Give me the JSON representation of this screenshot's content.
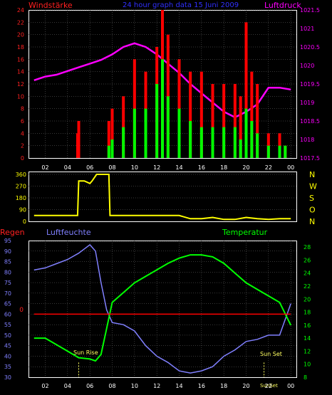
{
  "header": {
    "title": "24 hour graph data  15 Juni 2009",
    "left_label": "Windstärke",
    "right_label": "Luftdruck"
  },
  "colors": {
    "background": "#000000",
    "frame": "#ffffff",
    "wind_axis": "#ff2020",
    "pressure": "#ff00ff",
    "gust": "#ff0000",
    "wind": "#00ff00",
    "direction": "#ffff00",
    "humidity": "#8080ff",
    "temperature": "#00ff00",
    "rain": "#ff0000",
    "sun_marker": "#ffff60",
    "grid": "#707070",
    "title": "#3030ff",
    "x_ticks": "#ffffff"
  },
  "x_ticks": [
    "02",
    "04",
    "06",
    "08",
    "10",
    "12",
    "14",
    "16",
    "18",
    "20",
    "22",
    "00"
  ],
  "wind_panel": {
    "left_ticks": [
      "0",
      "2",
      "4",
      "6",
      "8",
      "10",
      "12",
      "14",
      "16",
      "18",
      "20",
      "22",
      "24"
    ],
    "right_ticks": [
      "1017.5",
      "1018",
      "1018.5",
      "1019",
      "1019.5",
      "1020",
      "1020.5",
      "1021",
      "1021.5"
    ]
  },
  "dir_panel": {
    "left_ticks": [
      "0",
      "90",
      "180",
      "270",
      "360"
    ],
    "right_labels": [
      "N",
      "W",
      "S",
      "O",
      "N"
    ]
  },
  "climate_panel": {
    "labels": {
      "rain": "Regen",
      "humidity": "Luftfeuchte",
      "temperature": "Temperatur",
      "sun_rise": "Sun Rise",
      "sun_set": "Sun Set",
      "sun_set_axis": "SunSet"
    },
    "left_ticks": [
      "30",
      "35",
      "40",
      "45",
      "50",
      "55",
      "60",
      "65",
      "70",
      "75",
      "80",
      "85",
      "90",
      "95"
    ],
    "right_ticks": [
      "8",
      "10",
      "12",
      "14",
      "16",
      "18",
      "20",
      "22",
      "24",
      "26",
      "28"
    ],
    "rain_value_label": "0"
  },
  "chart_data": [
    {
      "type": "line",
      "title": "24 hour graph data  15 Juni 2009",
      "xlabel": "",
      "ylabel": "Windstärke",
      "x_hours": [
        1,
        24
      ],
      "ylim": [
        0,
        24
      ],
      "y2label": "Luftdruck",
      "y2lim": [
        1017.5,
        1021.5
      ],
      "series": [
        {
          "name": "Luftdruck",
          "axis": "right",
          "x": [
            1,
            2,
            3,
            4,
            5,
            6,
            7,
            8,
            9,
            10,
            11,
            12,
            13,
            14,
            15,
            16,
            17,
            18,
            19,
            20,
            21,
            22,
            23,
            24
          ],
          "values": [
            1019.6,
            1019.7,
            1019.75,
            1019.85,
            1019.95,
            1020.05,
            1020.15,
            1020.3,
            1020.5,
            1020.6,
            1020.5,
            1020.3,
            1020.05,
            1019.8,
            1019.5,
            1019.25,
            1019.0,
            1018.75,
            1018.6,
            1018.75,
            1018.95,
            1019.4,
            1019.4,
            1019.35
          ]
        },
        {
          "name": "gust",
          "axis": "left",
          "x": [
            4.9,
            5.0,
            7.0,
            7.7,
            8.0,
            9.0,
            10,
            11,
            12,
            12.5,
            13,
            14,
            15,
            16,
            17,
            18,
            19,
            19.5,
            20,
            20.5,
            21,
            22,
            23,
            23.5
          ],
          "values": [
            4,
            6,
            0,
            6,
            8,
            10,
            16,
            14,
            18,
            24,
            20,
            16,
            14,
            14,
            12,
            12,
            12,
            10,
            22,
            14,
            12,
            4,
            4,
            2
          ]
        },
        {
          "name": "wind",
          "axis": "left",
          "x": [
            7.7,
            8.0,
            9.0,
            10,
            11,
            12,
            12.5,
            13,
            14,
            15,
            16,
            17,
            18,
            19,
            19.5,
            20,
            20.5,
            21,
            22,
            23,
            23.5
          ],
          "values": [
            2,
            3,
            5,
            8,
            8,
            12,
            16,
            10,
            8,
            6,
            5,
            5,
            5,
            5,
            3,
            8,
            6,
            4,
            2,
            2,
            2
          ]
        }
      ]
    },
    {
      "type": "line",
      "title": "",
      "xlabel": "",
      "ylabel": "",
      "x_hours": [
        1,
        24
      ],
      "ylim": [
        0,
        360
      ],
      "series": [
        {
          "name": "direction",
          "x": [
            1,
            2,
            3,
            4,
            4.9,
            5.0,
            5.5,
            6.0,
            6.2,
            6.6,
            6.8,
            7.7,
            7.8,
            8.0,
            9,
            10,
            11,
            12,
            13,
            14,
            15,
            16,
            17,
            18,
            19,
            20,
            21,
            22,
            23,
            24
          ],
          "values": [
            45,
            45,
            45,
            45,
            45,
            310,
            310,
            290,
            310,
            360,
            360,
            360,
            45,
            45,
            45,
            45,
            45,
            45,
            45,
            45,
            20,
            20,
            30,
            15,
            15,
            30,
            20,
            15,
            20,
            20
          ]
        }
      ]
    },
    {
      "type": "line",
      "title": "",
      "xlabel": "",
      "ylabel": "Luftfeuchte",
      "x_hours": [
        1,
        24
      ],
      "ylim": [
        30,
        95
      ],
      "y2label": "Temperatur",
      "y2lim": [
        8,
        29
      ],
      "series": [
        {
          "name": "Luftfeuchte",
          "axis": "left",
          "x": [
            1,
            2,
            3,
            4,
            5,
            5.5,
            6,
            6.5,
            7,
            7.5,
            8,
            9,
            10,
            11,
            12,
            13,
            14,
            15,
            16,
            17,
            18,
            19,
            20,
            21,
            22,
            23,
            24
          ],
          "values": [
            81,
            82,
            84,
            86,
            89,
            91,
            93,
            90,
            75,
            62,
            56,
            55,
            52,
            45,
            40,
            37,
            33,
            32,
            33,
            35,
            40,
            43,
            47,
            48,
            50,
            50,
            65
          ]
        },
        {
          "name": "Temperatur",
          "axis": "right",
          "x": [
            1,
            2,
            3,
            4,
            5,
            6,
            6.5,
            7,
            7.5,
            8,
            9,
            10,
            11,
            12,
            13,
            14,
            15,
            16,
            17,
            18,
            19,
            20,
            21,
            22,
            23,
            24
          ],
          "values": [
            14,
            14,
            13,
            12,
            11,
            10.8,
            10.5,
            11.5,
            15.5,
            19.5,
            21,
            22.5,
            23.5,
            24.5,
            25.5,
            26.3,
            26.8,
            26.8,
            26.5,
            25.5,
            24,
            22.5,
            21.5,
            20.5,
            19.5,
            16
          ]
        },
        {
          "name": "Regen",
          "axis": "left",
          "x": [
            1,
            24
          ],
          "values": [
            60,
            60
          ]
        }
      ],
      "annotations": [
        "Sun Rise",
        "Sun Set"
      ]
    }
  ]
}
